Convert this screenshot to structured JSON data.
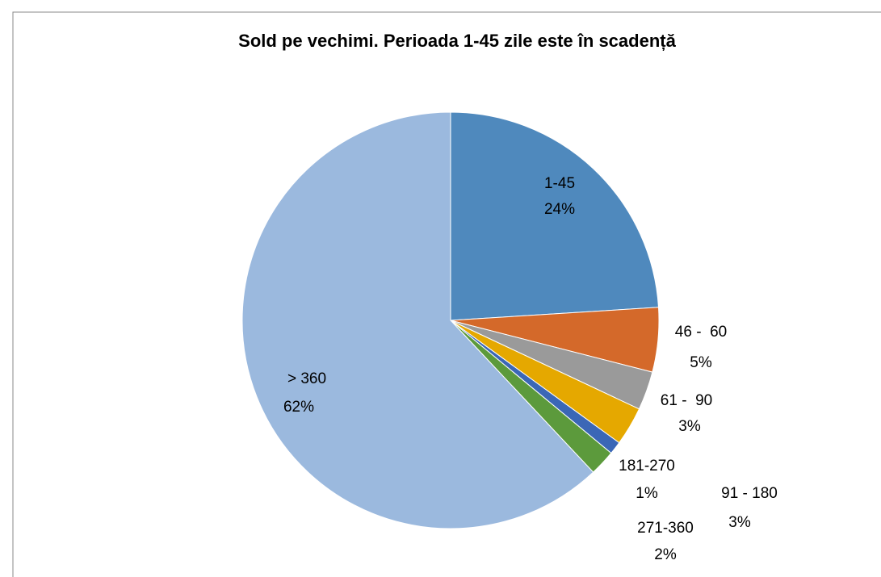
{
  "chart_data": {
    "type": "pie",
    "title": "Sold pe vechimi. Perioada 1-45 zile este în scadență",
    "categories": [
      "1-45",
      "46 -  60",
      "61 -  90",
      "91 - 180",
      "181-270",
      "271-360",
      "> 360"
    ],
    "values": [
      24,
      5,
      3,
      3,
      1,
      2,
      62
    ],
    "value_labels": [
      "24%",
      "5%",
      "3%",
      "3%",
      "1%",
      "2%",
      "62%"
    ],
    "colors": [
      "#4f89bd",
      "#d4692a",
      "#9a9a9a",
      "#e5a800",
      "#3b67b6",
      "#5c9a3c",
      "#9bb9de"
    ]
  }
}
